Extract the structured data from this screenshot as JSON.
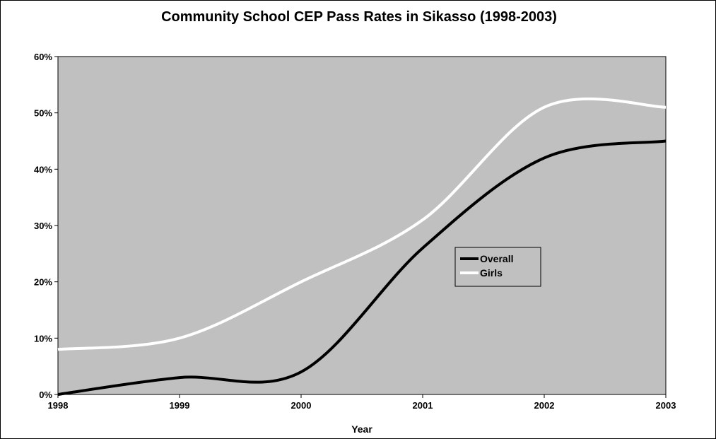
{
  "chart_data": {
    "type": "line",
    "title": "Community School CEP Pass Rates in Sikasso (1998-2003)",
    "xlabel": "Year",
    "ylabel": "",
    "x": [
      "1998",
      "1999",
      "2000",
      "2001",
      "2002",
      "2003"
    ],
    "y_ticks": [
      "0%",
      "10%",
      "20%",
      "30%",
      "40%",
      "50%",
      "60%"
    ],
    "ylim": [
      0,
      60
    ],
    "grid": false,
    "smoothed": true,
    "legend_position": "center-right",
    "plot_background": "#c0c0c0",
    "series": [
      {
        "name": "Overall",
        "values": [
          0,
          3,
          4,
          26,
          42,
          45
        ],
        "color": "#000000"
      },
      {
        "name": "Girls",
        "values": [
          8,
          10,
          20,
          31,
          51,
          51
        ],
        "color": "#ffffff"
      }
    ]
  }
}
